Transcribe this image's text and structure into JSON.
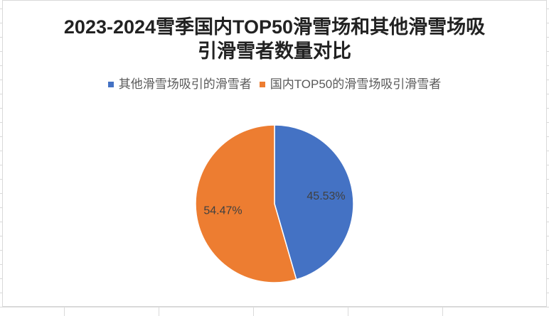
{
  "chart_data": {
    "type": "pie",
    "title": "2023-2024雪季国内TOP50滑雪场和其他滑雪场吸引滑雪者数量对比",
    "categories": [
      "其他滑雪场吸引的滑雪者",
      "国内TOP50的滑雪场吸引滑雪者"
    ],
    "values": [
      45.53,
      54.47
    ],
    "data_labels": [
      "45.53%",
      "54.47%"
    ],
    "colors": [
      "#4472C4",
      "#ED7D31"
    ],
    "legend_position": "top"
  }
}
